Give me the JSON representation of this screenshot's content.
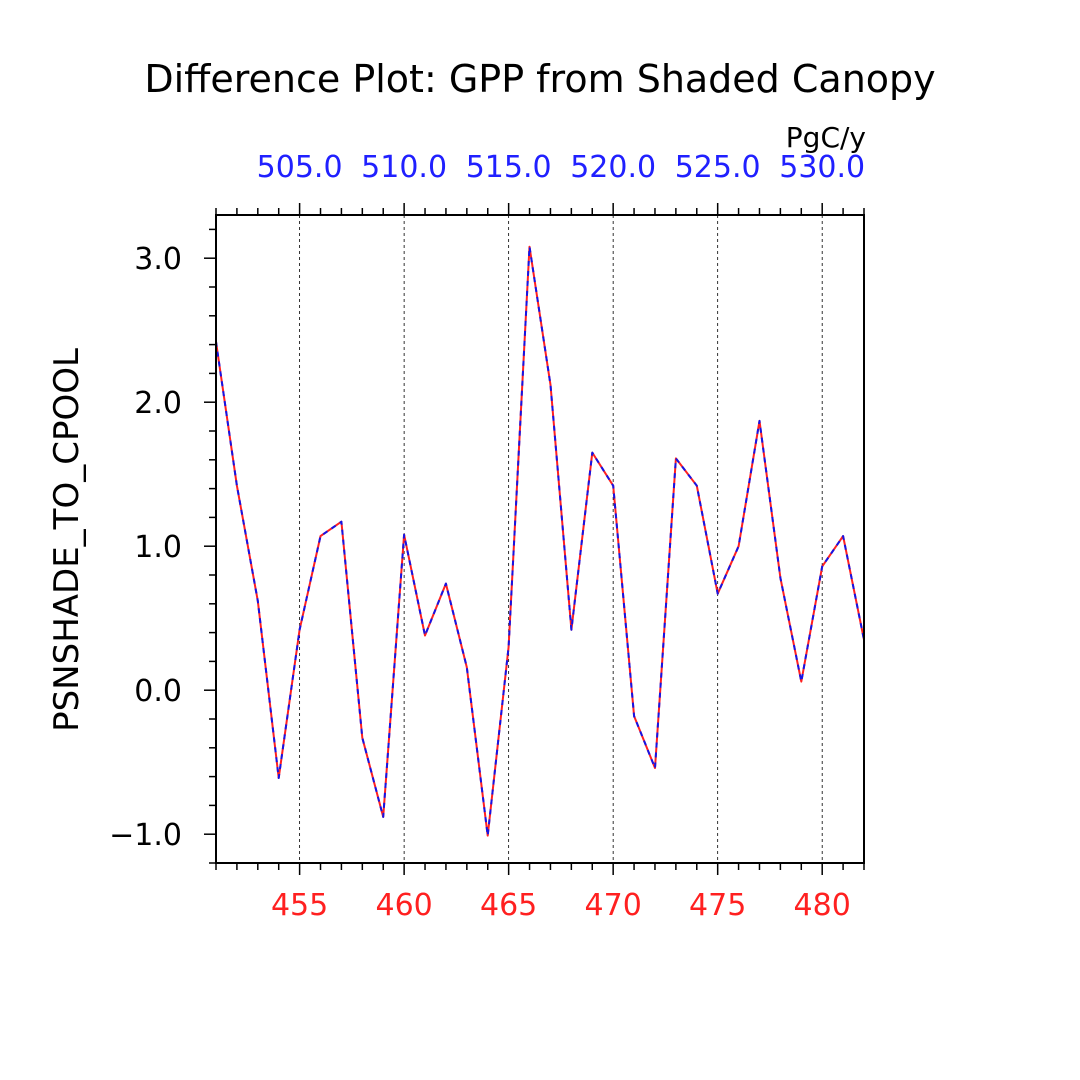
{
  "chart_data": {
    "type": "line",
    "title": "Difference Plot: GPP from Shaded Canopy",
    "ylabel": "PSNSHADE_TO_CPOOL",
    "units": "PgC/y",
    "xlim": [
      451,
      482
    ],
    "ylim": [
      -1.2,
      3.3
    ],
    "x_ticks": [
      455,
      460,
      465,
      470,
      475,
      480
    ],
    "x_tick_labels": [
      "455",
      "460",
      "465",
      "470",
      "475",
      "480"
    ],
    "y_ticks": [
      -1.0,
      0.0,
      1.0,
      2.0,
      3.0
    ],
    "y_tick_labels": [
      "−1.0",
      "0.0",
      "1.0",
      "2.0",
      "3.0"
    ],
    "top_axis_tick_labels": [
      "505.0",
      "510.0",
      "515.0",
      "520.0",
      "525.0",
      "530.0"
    ],
    "grid": "vertical dashed at major x ticks",
    "colors": {
      "bottom_axis": "#ff2020",
      "top_axis": "#2020ff",
      "series_a": "#ff2020",
      "series_b": "#1414e6"
    },
    "x": [
      451,
      452,
      453,
      454,
      455,
      456,
      457,
      458,
      459,
      460,
      461,
      462,
      463,
      464,
      465,
      466,
      467,
      468,
      469,
      470,
      471,
      472,
      473,
      474,
      475,
      476,
      477,
      478,
      479,
      480,
      481,
      482
    ],
    "series": [
      {
        "values": [
          2.42,
          1.42,
          0.62,
          -0.61,
          0.42,
          1.07,
          1.17,
          -0.33,
          -0.88,
          1.08,
          0.38,
          0.74,
          0.16,
          -1.01,
          0.3,
          3.08,
          2.12,
          0.42,
          1.65,
          1.42,
          -0.18,
          -0.54,
          1.61,
          1.42,
          0.67,
          1.0,
          1.87,
          0.78,
          0.06,
          0.86,
          1.07,
          0.35
        ]
      },
      {
        "values": [
          2.42,
          1.42,
          0.62,
          -0.61,
          0.42,
          1.07,
          1.17,
          -0.33,
          -0.88,
          1.08,
          0.38,
          0.74,
          0.16,
          -1.01,
          0.3,
          3.08,
          2.12,
          0.42,
          1.65,
          1.42,
          -0.18,
          -0.54,
          1.61,
          1.42,
          0.67,
          1.0,
          1.87,
          0.78,
          0.06,
          0.86,
          1.07,
          0.35
        ]
      }
    ]
  }
}
